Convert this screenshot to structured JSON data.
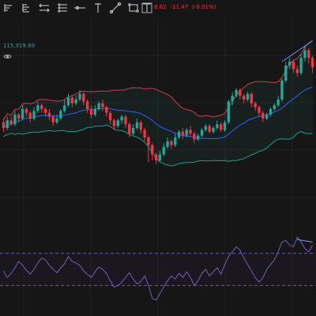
{
  "toolbar": {
    "tools": [
      {
        "name": "short-position-tool-icon"
      },
      {
        "name": "long-position-tool-icon"
      },
      {
        "name": "range-tool-icon"
      },
      {
        "name": "risk-reward-tool-icon"
      },
      {
        "name": "horizontal-ray-icon"
      },
      {
        "name": "vertical-line-icon"
      },
      {
        "name": "trend-line-icon"
      },
      {
        "name": "rectangle-tool-icon"
      },
      {
        "name": "path-tool-icon"
      },
      {
        "name": "text-tool-icon"
      }
    ]
  },
  "quote": {
    "value": "8.62",
    "change": "-11.47",
    "change_pct": "(-0.01%)"
  },
  "price_label": "115,919.89",
  "colors": {
    "background": "#161616",
    "up": "#26a69a",
    "down": "#f23645",
    "basis": "#2962ff",
    "upper_band": "#d33a4a",
    "lower_band": "#1f9c8c",
    "band_fill": "rgba(38,166,154,0.07)",
    "grid": "#232323",
    "rsi_line": "#7e57c2",
    "rsi_bounds": "#6a5aa8",
    "trendline": "#6b8cff",
    "trendline_rsi": "#7b9bff"
  },
  "chart_data": [
    {
      "type": "candlestick",
      "title": "",
      "indicator": "Bollinger Bands",
      "grid": true,
      "ylim": [
        0,
        100
      ],
      "candles": [
        [
          48,
          45,
          50,
          43
        ],
        [
          45,
          49,
          51,
          44
        ],
        [
          49,
          47,
          51,
          46
        ],
        [
          47,
          52,
          54,
          46
        ],
        [
          52,
          50,
          53,
          48
        ],
        [
          50,
          55,
          57,
          49
        ],
        [
          55,
          53,
          56,
          51
        ],
        [
          53,
          50,
          54,
          48
        ],
        [
          50,
          54,
          56,
          49
        ],
        [
          54,
          57,
          59,
          53
        ],
        [
          57,
          55,
          58,
          53
        ],
        [
          55,
          53,
          56,
          51
        ],
        [
          53,
          51,
          55,
          49
        ],
        [
          51,
          48,
          52,
          46
        ],
        [
          48,
          50,
          52,
          47
        ],
        [
          50,
          54,
          55,
          49
        ],
        [
          54,
          57,
          60,
          53
        ],
        [
          57,
          61,
          63,
          56
        ],
        [
          61,
          58,
          62,
          56
        ],
        [
          58,
          60,
          62,
          57
        ],
        [
          60,
          63,
          65,
          59
        ],
        [
          63,
          59,
          64,
          57
        ],
        [
          59,
          55,
          60,
          53
        ],
        [
          55,
          52,
          57,
          50
        ],
        [
          52,
          55,
          57,
          51
        ],
        [
          55,
          58,
          59,
          54
        ],
        [
          58,
          56,
          60,
          54
        ],
        [
          56,
          53,
          57,
          51
        ],
        [
          53,
          49,
          54,
          47
        ],
        [
          49,
          46,
          50,
          44
        ],
        [
          46,
          49,
          50,
          45
        ],
        [
          49,
          51,
          52,
          47
        ],
        [
          51,
          47,
          52,
          45
        ],
        [
          47,
          42,
          48,
          40
        ],
        [
          42,
          45,
          47,
          41
        ],
        [
          45,
          48,
          50,
          44
        ],
        [
          48,
          44,
          49,
          42
        ],
        [
          44,
          40,
          45,
          38
        ],
        [
          40,
          36,
          41,
          27
        ],
        [
          36,
          31,
          37,
          28
        ],
        [
          31,
          28,
          32,
          26
        ],
        [
          28,
          31,
          33,
          27
        ],
        [
          31,
          35,
          37,
          30
        ],
        [
          35,
          38,
          40,
          34
        ],
        [
          38,
          36,
          39,
          34
        ],
        [
          36,
          40,
          42,
          35
        ],
        [
          40,
          43,
          44,
          39
        ],
        [
          43,
          41,
          45,
          39
        ],
        [
          41,
          44,
          45,
          40
        ],
        [
          44,
          42,
          46,
          40
        ],
        [
          42,
          39,
          43,
          37
        ],
        [
          39,
          41,
          42,
          38
        ],
        [
          41,
          44,
          45,
          40
        ],
        [
          44,
          46,
          47,
          43
        ],
        [
          46,
          43,
          47,
          42
        ],
        [
          43,
          45,
          46,
          42
        ],
        [
          45,
          47,
          49,
          44
        ],
        [
          47,
          44,
          48,
          43
        ],
        [
          44,
          48,
          49,
          43
        ],
        [
          48,
          59,
          60,
          47
        ],
        [
          59,
          62,
          64,
          57
        ],
        [
          62,
          65,
          66,
          61
        ],
        [
          65,
          62,
          66,
          60
        ],
        [
          62,
          60,
          63,
          58
        ],
        [
          60,
          63,
          64,
          59
        ],
        [
          63,
          58,
          64,
          56
        ],
        [
          58,
          56,
          59,
          54
        ],
        [
          56,
          53,
          57,
          51
        ],
        [
          53,
          50,
          54,
          48
        ],
        [
          50,
          52,
          53,
          49
        ],
        [
          52,
          55,
          56,
          51
        ],
        [
          55,
          57,
          58,
          54
        ],
        [
          57,
          60,
          62,
          56
        ],
        [
          60,
          70,
          71,
          59
        ],
        [
          70,
          78,
          80,
          69
        ],
        [
          78,
          80,
          82,
          76
        ],
        [
          80,
          76,
          81,
          74
        ],
        [
          76,
          74,
          78,
          72
        ],
        [
          74,
          82,
          84,
          73
        ],
        [
          82,
          86,
          88,
          80
        ],
        [
          86,
          82,
          87,
          79
        ],
        [
          82,
          77,
          83,
          74
        ]
      ],
      "trendline": {
        "from": [
          73,
          80
        ],
        "to": [
          81,
          91
        ]
      }
    },
    {
      "type": "line",
      "title": "",
      "indicator": "RSI",
      "ylim": [
        0,
        100
      ],
      "bounds": [
        70,
        30
      ],
      "values": [
        48,
        40,
        45,
        52,
        60,
        55,
        49,
        44,
        50,
        58,
        64,
        62,
        55,
        50,
        46,
        52,
        57,
        66,
        60,
        58,
        55,
        48,
        44,
        40,
        47,
        53,
        50,
        45,
        36,
        28,
        30,
        34,
        40,
        46,
        38,
        32,
        35,
        42,
        30,
        14,
        12,
        20,
        28,
        36,
        42,
        38,
        45,
        40,
        47,
        40,
        30,
        36,
        45,
        50,
        42,
        47,
        52,
        44,
        56,
        66,
        72,
        78,
        74,
        64,
        56,
        48,
        40,
        34,
        40,
        50,
        56,
        62,
        72,
        84,
        86,
        80,
        78,
        90,
        84,
        76,
        72,
        80
      ],
      "trendline": {
        "from": [
          77,
          87
        ],
        "to": [
          81,
          84
        ]
      }
    }
  ]
}
